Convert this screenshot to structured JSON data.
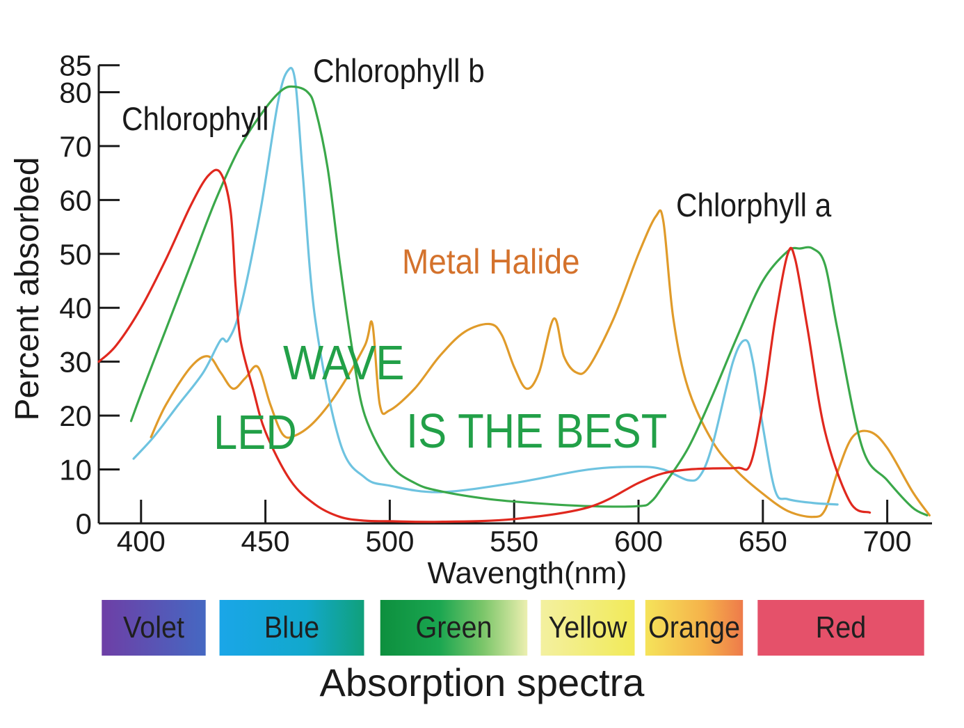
{
  "chart_data": {
    "type": "line",
    "xlabel": "Wavength(nm)",
    "ylabel": "Percent absorbed",
    "xlim": [
      383,
      718
    ],
    "ylim": [
      0,
      86
    ],
    "xticks": [
      400,
      450,
      500,
      550,
      600,
      650,
      700
    ],
    "yticks": [
      0,
      10,
      20,
      30,
      40,
      50,
      60,
      70,
      80,
      85
    ],
    "series": [
      {
        "name": "Chlorophyll",
        "color": "#e0281e",
        "x": [
          383,
          390,
          400,
          410,
          420,
          427,
          432,
          436,
          438,
          440,
          445,
          450,
          460,
          470,
          480,
          490,
          500,
          520,
          550,
          580,
          600,
          610,
          620,
          630,
          640,
          645,
          650,
          655,
          660,
          663,
          668,
          675,
          685,
          693
        ],
        "y": [
          30,
          33,
          40,
          49,
          59,
          64.5,
          65,
          58,
          44,
          34,
          25,
          17,
          8,
          3.5,
          1.2,
          0.5,
          0.4,
          0.3,
          0.8,
          3,
          7.5,
          9.3,
          10,
          10.2,
          10.3,
          11,
          22,
          38,
          50,
          49,
          36,
          17,
          4,
          2
        ]
      },
      {
        "name": "Chlorophyll b",
        "color": "#3aa84a",
        "x": [
          396,
          400,
          410,
          420,
          430,
          440,
          450,
          457,
          462,
          467,
          470,
          475,
          480,
          485,
          490,
          500,
          510,
          520,
          540,
          560,
          580,
          600,
          605,
          610,
          620,
          630,
          640,
          650,
          660,
          665,
          670,
          675,
          680,
          690,
          700,
          710,
          716
        ],
        "y": [
          19,
          24,
          36,
          48,
          60,
          70,
          77,
          80.5,
          81,
          80,
          77,
          66,
          48,
          32,
          20,
          11,
          7.5,
          6,
          4.5,
          3.7,
          3.2,
          3.2,
          4,
          7,
          14,
          24,
          35,
          45,
          50.5,
          51,
          51,
          48,
          36,
          14,
          8,
          3,
          1.5
        ]
      },
      {
        "name": "Blue curve",
        "color": "#6ec3e0",
        "x": [
          397,
          405,
          415,
          425,
          432,
          435,
          440,
          448,
          455,
          459,
          462,
          465,
          470,
          480,
          490,
          500,
          520,
          550,
          580,
          600,
          610,
          620,
          625,
          630,
          638,
          643,
          646,
          650,
          655,
          660,
          670,
          680
        ],
        "y": [
          12,
          16,
          22,
          28,
          34,
          34,
          40,
          58,
          78,
          84,
          82,
          65,
          38,
          15,
          8.5,
          7,
          5.8,
          7.5,
          10,
          10.5,
          10,
          8,
          9,
          15,
          30,
          34,
          30,
          18,
          6,
          4.5,
          3.8,
          3.5
        ]
      },
      {
        "name": "Metal Halide",
        "color": "#e09b2a",
        "x": [
          404,
          410,
          420,
          427,
          432,
          437,
          442,
          447,
          452,
          457,
          462,
          470,
          480,
          490,
          493,
          496,
          500,
          510,
          520,
          530,
          540,
          545,
          550,
          555,
          560,
          566,
          570,
          575,
          580,
          590,
          600,
          607,
          610,
          614,
          620,
          630,
          640,
          650,
          660,
          670,
          675,
          680,
          686,
          693,
          700,
          710,
          717
        ],
        "y": [
          16,
          22,
          29,
          31,
          28,
          25,
          27,
          29,
          22,
          16.5,
          16.3,
          19,
          25,
          33,
          37,
          22,
          21,
          25,
          31,
          35.5,
          37,
          35,
          29,
          25,
          28,
          38,
          31,
          28,
          29,
          38,
          50,
          57,
          56,
          38,
          25,
          15,
          9.5,
          5.5,
          2.3,
          1.2,
          2.5,
          9.5,
          16,
          17,
          14,
          6,
          1.5
        ]
      }
    ]
  },
  "annotations": {
    "chlorophyll": "Chlorophyll",
    "chlorophyll_b": "Chlorophyll  b",
    "chlorophyll_a": "Chlorphyll  a",
    "metal_halide": "Metal Halide",
    "wave": "WAVE",
    "led": "LED",
    "is_the_best": "IS THE BEST"
  },
  "spectrum": {
    "bands": [
      {
        "label": "Volet"
      },
      {
        "label": "Blue"
      },
      {
        "label": "Green"
      },
      {
        "label": "Yellow"
      },
      {
        "label": "Orange"
      },
      {
        "label": "Red"
      }
    ],
    "title": "Absorption spectra"
  }
}
